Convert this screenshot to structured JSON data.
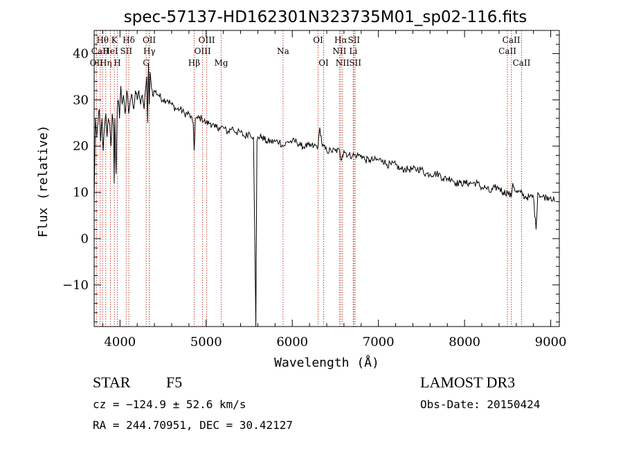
{
  "chart_data": {
    "type": "line",
    "title": "spec-57137-HD162301N323735M01_sp02-116.fits",
    "xlabel": "Wavelength (Å)",
    "ylabel": "Flux (relative)",
    "xlim": [
      3700,
      9100
    ],
    "ylim": [
      -19,
      45
    ],
    "xticks": [
      4000,
      5000,
      6000,
      7000,
      8000,
      9000
    ],
    "yticks": [
      -10,
      0,
      10,
      20,
      30,
      40
    ],
    "series": [
      {
        "name": "spectrum",
        "x": [
          3700,
          3715,
          3730,
          3745,
          3760,
          3775,
          3790,
          3805,
          3820,
          3835,
          3850,
          3865,
          3880,
          3895,
          3910,
          3925,
          3933,
          3940,
          3955,
          3968,
          3980,
          3995,
          4010,
          4025,
          4040,
          4060,
          4080,
          4101,
          4120,
          4140,
          4160,
          4180,
          4200,
          4220,
          4240,
          4260,
          4280,
          4300,
          4310,
          4320,
          4330,
          4340,
          4350,
          4360,
          4380,
          4400,
          4450,
          4500,
          4550,
          4600,
          4650,
          4700,
          4750,
          4800,
          4850,
          4861,
          4875,
          4900,
          4950,
          5000,
          5050,
          5100,
          5150,
          5200,
          5250,
          5300,
          5350,
          5400,
          5450,
          5500,
          5550,
          5577,
          5590,
          5600,
          5650,
          5700,
          5750,
          5800,
          5850,
          5890,
          5900,
          5950,
          6000,
          6050,
          6100,
          6150,
          6200,
          6250,
          6300,
          6320,
          6350,
          6400,
          6450,
          6500,
          6550,
          6563,
          6580,
          6600,
          6650,
          6700,
          6750,
          6800,
          6850,
          6900,
          6950,
          7000,
          7050,
          7100,
          7150,
          7200,
          7250,
          7300,
          7350,
          7400,
          7450,
          7500,
          7550,
          7600,
          7650,
          7700,
          7750,
          7800,
          7850,
          7900,
          7950,
          8000,
          8050,
          8100,
          8150,
          8200,
          8250,
          8300,
          8350,
          8400,
          8450,
          8500,
          8542,
          8560,
          8600,
          8650,
          8700,
          8750,
          8800,
          8830,
          8850,
          8900,
          8950,
          9000,
          9050
        ],
        "values": [
          8,
          26,
          22,
          25,
          28,
          21,
          26,
          19,
          24,
          27,
          22,
          26,
          25,
          20,
          27,
          24,
          12,
          26,
          14,
          28,
          30,
          26,
          33,
          29,
          31,
          27,
          32,
          27,
          30,
          31,
          28,
          32,
          30,
          32,
          29,
          31,
          28,
          33,
          35,
          25,
          38,
          29,
          36,
          34,
          31,
          32,
          31,
          30,
          30,
          29,
          28,
          28,
          27,
          27,
          25,
          19,
          26,
          26,
          26,
          25,
          25,
          24,
          24,
          24,
          23,
          24,
          23,
          23,
          22,
          23,
          22,
          -19,
          21,
          22,
          22,
          21,
          21,
          21,
          21,
          20,
          20,
          21,
          21,
          21,
          20,
          20,
          20,
          20,
          20,
          24,
          20,
          19,
          19,
          19,
          19,
          17,
          18,
          19,
          18,
          18,
          18,
          18,
          17,
          17,
          17,
          17,
          17,
          16,
          16,
          16,
          15,
          15,
          15,
          15,
          15,
          15,
          14,
          14,
          14,
          14,
          13,
          13,
          13,
          12,
          12,
          12,
          12,
          12,
          12,
          11,
          11,
          10,
          11,
          11,
          10,
          10,
          9,
          12,
          10,
          10,
          9,
          9,
          9,
          2,
          10,
          9,
          9,
          9,
          8
        ]
      }
    ],
    "line_markers": [
      {
        "label": "Hθ",
        "x": 3798,
        "row": 1
      },
      {
        "label": "CaII",
        "x": 3770,
        "row": 2
      },
      {
        "label": "OII",
        "x": 3727,
        "row": 3
      },
      {
        "label": "Hη",
        "x": 3835,
        "row": 3
      },
      {
        "label": "HeI",
        "x": 3889,
        "row": 2
      },
      {
        "label": "K",
        "x": 3934,
        "row": 1
      },
      {
        "label": "H",
        "x": 3969,
        "row": 3
      },
      {
        "label": "SII",
        "x": 4072,
        "row": 2
      },
      {
        "label": "Hδ",
        "x": 4102,
        "row": 1
      },
      {
        "label": "OII",
        "x": 4340,
        "row": 1
      },
      {
        "label": "Hγ",
        "x": 4341,
        "row": 2
      },
      {
        "label": "G",
        "x": 4304,
        "row": 3
      },
      {
        "label": "Hβ",
        "x": 4861,
        "row": 3
      },
      {
        "label": "OIII",
        "x": 4959,
        "row": 2
      },
      {
        "label": "OIII",
        "x": 5007,
        "row": 1
      },
      {
        "label": "Mg",
        "x": 5175,
        "row": 3
      },
      {
        "label": "Na",
        "x": 5893,
        "row": 2
      },
      {
        "label": "OI",
        "x": 6300,
        "row": 1
      },
      {
        "label": "OI",
        "x": 6364,
        "row": 3
      },
      {
        "label": "Hα",
        "x": 6563,
        "row": 1
      },
      {
        "label": "NII",
        "x": 6548,
        "row": 2
      },
      {
        "label": "NII",
        "x": 6583,
        "row": 3
      },
      {
        "label": "SII",
        "x": 6716,
        "row": 1
      },
      {
        "label": "Li",
        "x": 6708,
        "row": 2
      },
      {
        "label": "SII",
        "x": 6731,
        "row": 3
      },
      {
        "label": "CaII",
        "x": 8542,
        "row": 1
      },
      {
        "label": "CaII",
        "x": 8498,
        "row": 2
      },
      {
        "label": "CaII",
        "x": 8662,
        "row": 3
      }
    ]
  },
  "info": {
    "object_class": "STAR",
    "subclass": "F5",
    "survey": "LAMOST DR3",
    "redshift": "cz = −124.9 ± 52.6 km/s",
    "obs_date": "Obs-Date: 20150424",
    "coords": "RA = 244.70951, DEC =  30.42127"
  },
  "colors": {
    "marker_line": "#c0392b",
    "spectrum": "#000000",
    "axes": "#000000"
  }
}
